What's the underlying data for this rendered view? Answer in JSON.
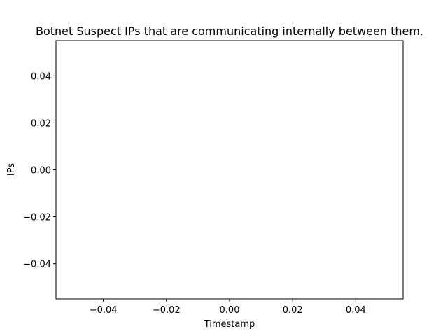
{
  "chart_data": {
    "type": "scatter",
    "title": "Botnet Suspect IPs that are communicating internally between them.",
    "xlabel": "Timestamp",
    "ylabel": "IPs",
    "x": [],
    "y": [],
    "xlim": [
      -0.055,
      0.055
    ],
    "ylim": [
      -0.055,
      0.055
    ],
    "x_ticks": [
      -0.04,
      -0.02,
      0.0,
      0.02,
      0.04
    ],
    "y_ticks": [
      -0.04,
      -0.02,
      0.0,
      0.02,
      0.04
    ],
    "x_tick_labels": [
      "−0.04",
      "−0.02",
      "0.00",
      "0.02",
      "0.04"
    ],
    "y_tick_labels": [
      "−0.04",
      "−0.02",
      "0.00",
      "0.02",
      "0.04"
    ],
    "grid": false,
    "legend": "none"
  }
}
